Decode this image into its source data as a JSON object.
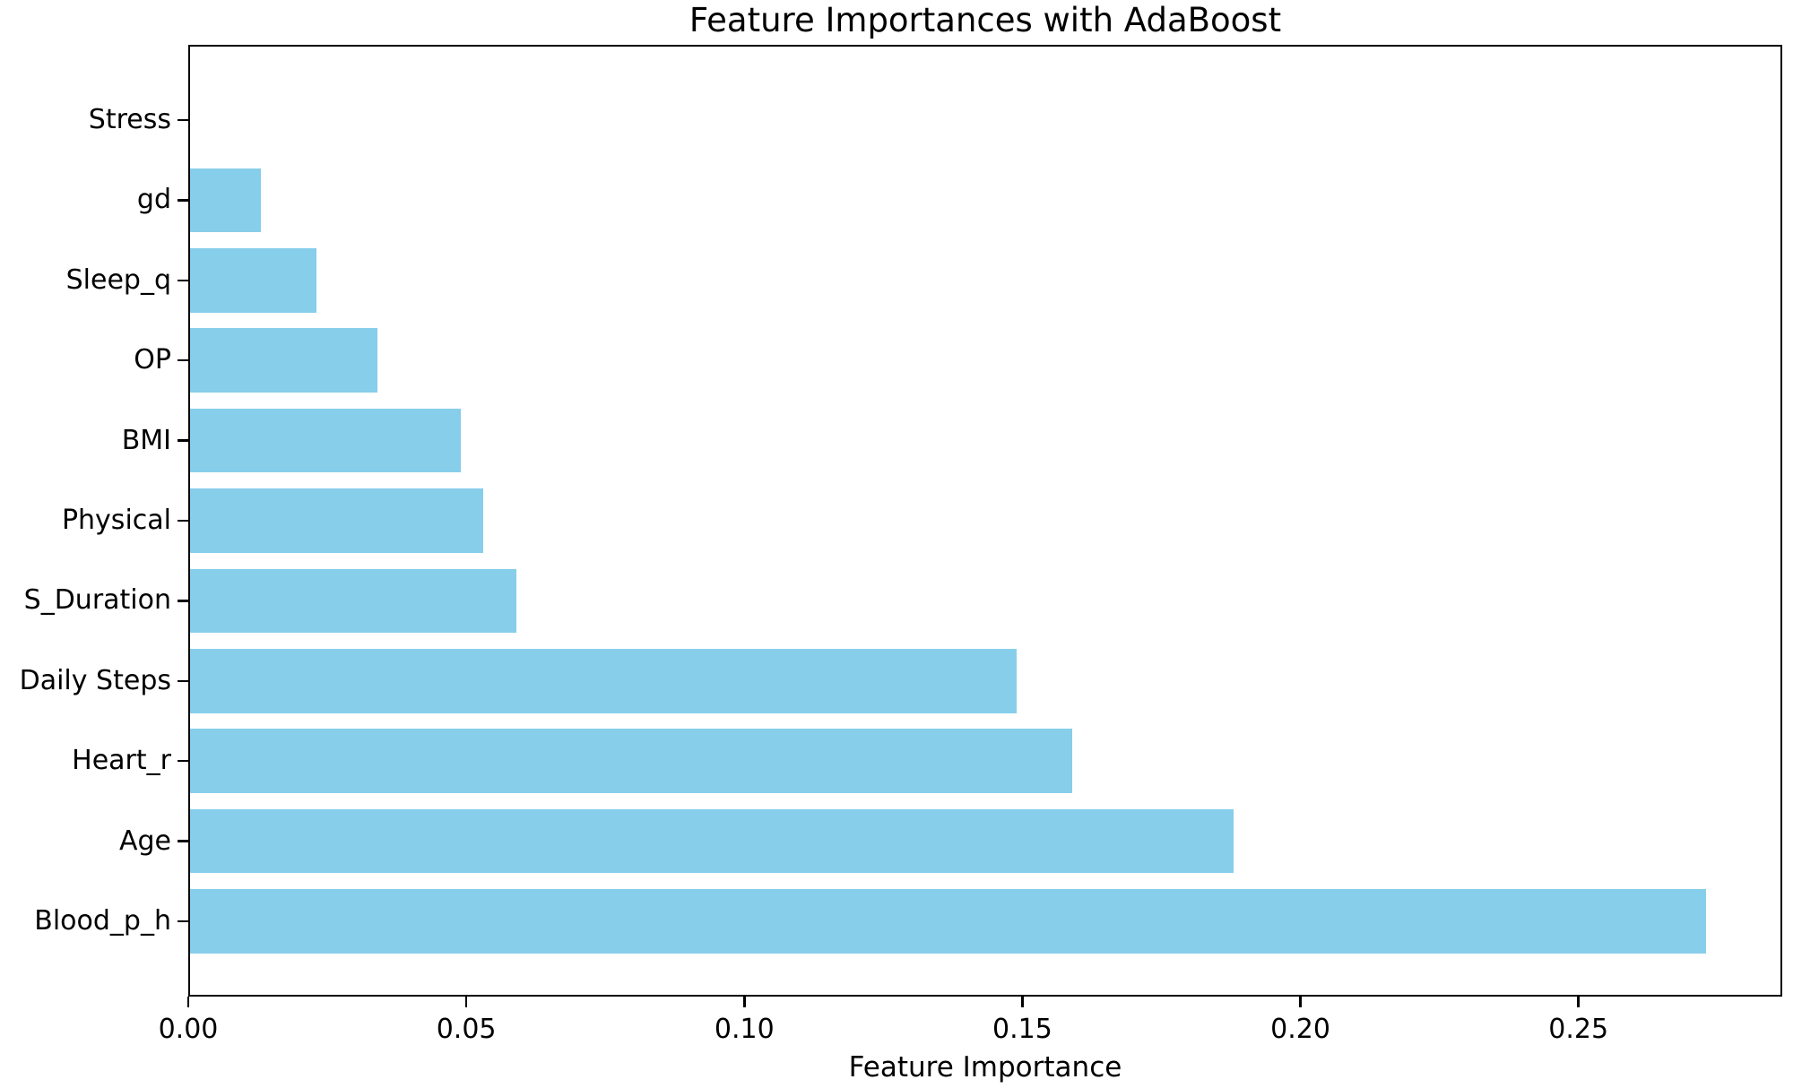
{
  "chart_data": {
    "type": "bar",
    "orientation": "horizontal",
    "title": "Feature Importances with AdaBoost",
    "xlabel": "Feature Importance",
    "ylabel": "",
    "categories_top_to_bottom": [
      "Stress",
      "gd",
      "Sleep_q",
      "OP",
      "BMI",
      "Physical",
      "S_Duration",
      "Daily Steps",
      "Heart_r",
      "Age",
      "Blood_p_h"
    ],
    "values_top_to_bottom": [
      0.0,
      0.013,
      0.023,
      0.034,
      0.049,
      0.053,
      0.059,
      0.149,
      0.159,
      0.188,
      0.273
    ],
    "xlim": [
      0,
      0.28665
    ],
    "xtick_values": [
      0.0,
      0.05,
      0.1,
      0.15,
      0.2,
      0.25
    ],
    "xtick_labels": [
      "0.00",
      "0.05",
      "0.10",
      "0.15",
      "0.20",
      "0.25"
    ],
    "grid": false,
    "legend_position": "none",
    "bar_color": "#87CEEB",
    "axis_color": "#000000",
    "text_color": "#000000",
    "background_color": "#FFFFFF"
  }
}
